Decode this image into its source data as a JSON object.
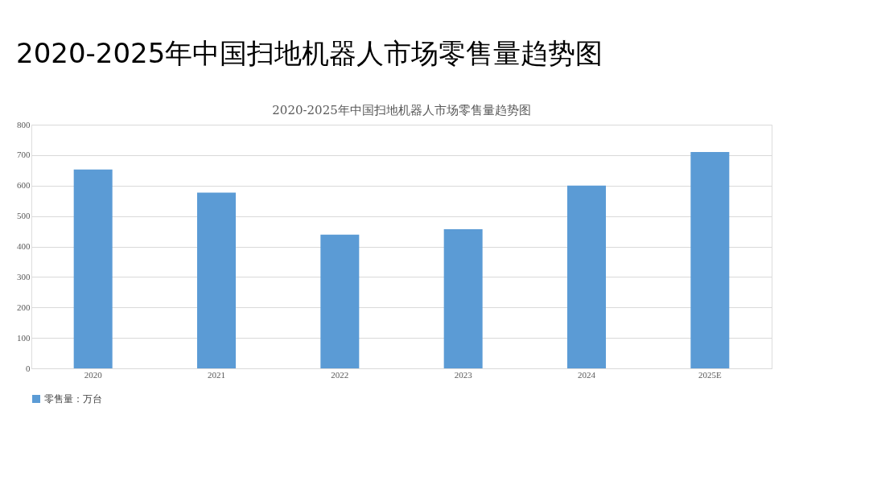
{
  "chart_data": {
    "type": "bar",
    "title": "2020-2025年中国扫地机器人市场零售量趋势图",
    "subtitle": "2020-2025年中国扫地机器人市场零售量趋势图",
    "categories": [
      "2020",
      "2021",
      "2022",
      "2023",
      "2024",
      "2025E"
    ],
    "series": [
      {
        "name": "零售量：万台",
        "color": "#5b9bd5",
        "values": [
          653,
          577,
          439,
          457,
          600,
          710
        ]
      }
    ],
    "ylim": [
      0,
      800
    ],
    "yticks": [
      0,
      100,
      200,
      300,
      400,
      500,
      600,
      700,
      800
    ],
    "grid": "y",
    "legend": "bottom"
  }
}
